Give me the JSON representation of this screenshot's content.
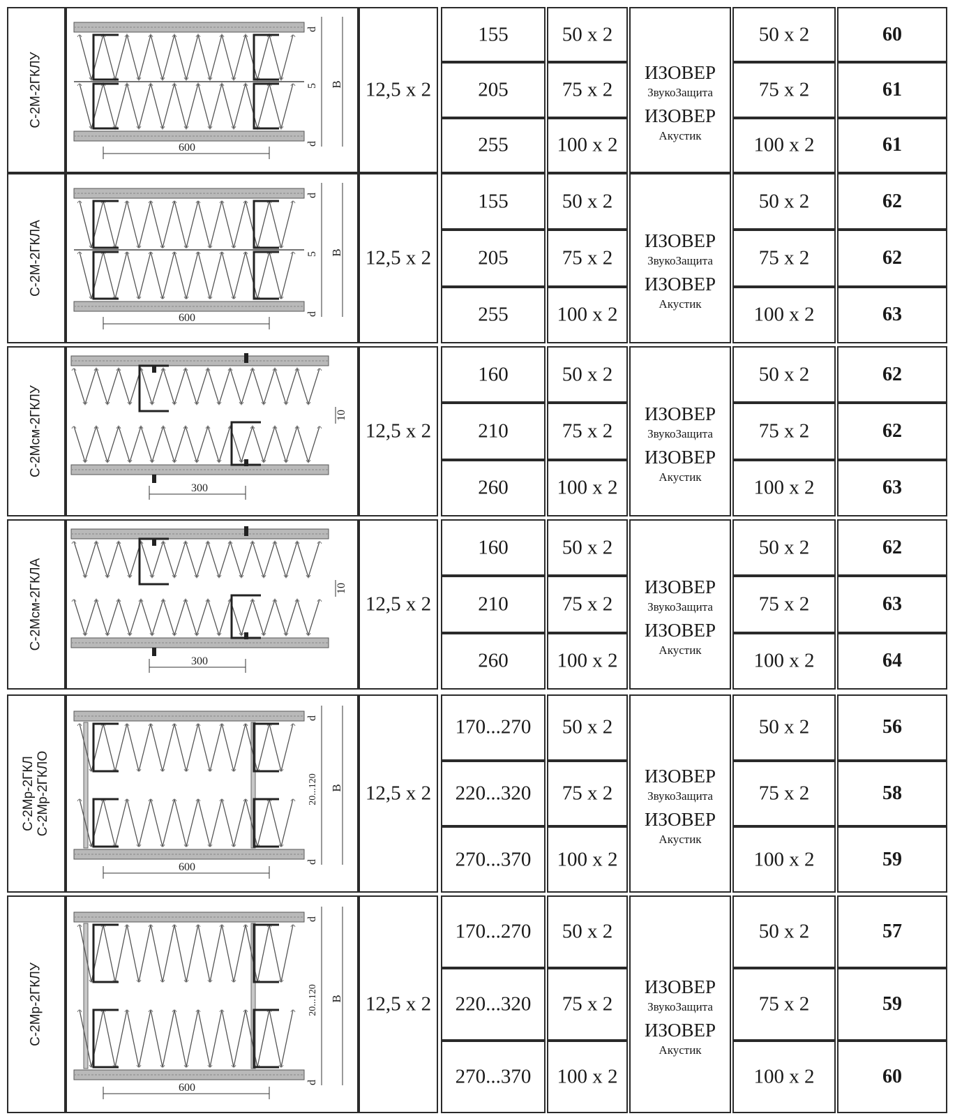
{
  "rows": [
    {
      "name": "С-2М-2ГКЛУ",
      "scheme": "double",
      "spacing_label": "600",
      "dim_labels": {
        "top": "d",
        "mid": "5",
        "height": "B",
        "bottom": "d"
      },
      "cladding": "12,5 x 2",
      "insulation": [
        "ИЗОВЕР",
        "ЗвукоЗащита",
        "ИЗОВЕР",
        "Акустик"
      ],
      "lines": [
        {
          "thickness": "155",
          "profile": "50 x 2",
          "mineral": "50 x 2",
          "rw": "60"
        },
        {
          "thickness": "205",
          "profile": "75 x 2",
          "mineral": "75 x 2",
          "rw": "61"
        },
        {
          "thickness": "255",
          "profile": "100 x 2",
          "mineral": "100 x 2",
          "rw": "61"
        }
      ]
    },
    {
      "name": "С-2М-2ГКЛА",
      "scheme": "double",
      "spacing_label": "600",
      "dim_labels": {
        "top": "d",
        "mid": "5",
        "height": "B",
        "bottom": "d"
      },
      "cladding": "12,5 x 2",
      "insulation": [
        "ИЗОВЕР",
        "ЗвукоЗащита",
        "ИЗОВЕР",
        "Акустик"
      ],
      "lines": [
        {
          "thickness": "155",
          "profile": "50 x 2",
          "mineral": "50 x 2",
          "rw": "62"
        },
        {
          "thickness": "205",
          "profile": "75 x 2",
          "mineral": "75 x 2",
          "rw": "62"
        },
        {
          "thickness": "255",
          "profile": "100 x 2",
          "mineral": "100 x 2",
          "rw": "63"
        }
      ]
    },
    {
      "name": "С-2Мсм-2ГКЛУ",
      "scheme": "staggered",
      "spacing_label": "300",
      "dim_labels": {
        "gap": "10"
      },
      "cladding": "12,5 x 2",
      "insulation": [
        "ИЗОВЕР",
        "ЗвукоЗащита",
        "ИЗОВЕР",
        "Акустик"
      ],
      "lines": [
        {
          "thickness": "160",
          "profile": "50 x 2",
          "mineral": "50 x 2",
          "rw": "62"
        },
        {
          "thickness": "210",
          "profile": "75 x 2",
          "mineral": "75 x 2",
          "rw": "62"
        },
        {
          "thickness": "260",
          "profile": "100 x 2",
          "mineral": "100 x 2",
          "rw": "63"
        }
      ]
    },
    {
      "name": "С-2Мсм-2ГКЛА",
      "scheme": "staggered",
      "spacing_label": "300",
      "dim_labels": {
        "gap": "10"
      },
      "cladding": "12,5 x 2",
      "insulation": [
        "ИЗОВЕР",
        "ЗвукоЗащита",
        "ИЗОВЕР",
        "Акустик"
      ],
      "lines": [
        {
          "thickness": "160",
          "profile": "50 x 2",
          "mineral": "50 x 2",
          "rw": "62"
        },
        {
          "thickness": "210",
          "profile": "75 x 2",
          "mineral": "75 x 2",
          "rw": "63"
        },
        {
          "thickness": "260",
          "profile": "100 x 2",
          "mineral": "100 x 2",
          "rw": "64"
        }
      ]
    },
    {
      "name": "С-2Мр-2ГКЛ\nС-2Мр-2ГКЛО",
      "scheme": "separated",
      "spacing_label": "600",
      "dim_labels": {
        "top": "d",
        "mid": "20...120",
        "height": "B",
        "bottom": "d"
      },
      "cladding": "12,5 x 2",
      "insulation": [
        "ИЗОВЕР",
        "ЗвукоЗащита",
        "ИЗОВЕР",
        "Акустик"
      ],
      "lines": [
        {
          "thickness": "170...270",
          "profile": "50 x 2",
          "mineral": "50 x 2",
          "rw": "56"
        },
        {
          "thickness": "220...320",
          "profile": "75 x 2",
          "mineral": "75 x 2",
          "rw": "58"
        },
        {
          "thickness": "270...370",
          "profile": "100 x 2",
          "mineral": "100 x 2",
          "rw": "59"
        }
      ]
    },
    {
      "name": "С-2Мр-2ГКЛУ",
      "scheme": "separated",
      "spacing_label": "600",
      "dim_labels": {
        "top": "d",
        "mid": "20...120",
        "height": "B",
        "bottom": "d"
      },
      "cladding": "12,5 x 2",
      "insulation": [
        "ИЗОВЕР",
        "ЗвукоЗащита",
        "ИЗОВЕР",
        "Акустик"
      ],
      "lines": [
        {
          "thickness": "170...270",
          "profile": "50 x 2",
          "mineral": "50 x 2",
          "rw": "57"
        },
        {
          "thickness": "220...320",
          "profile": "75 x 2",
          "mineral": "75 x 2",
          "rw": "59"
        },
        {
          "thickness": "270...370",
          "profile": "100 x 2",
          "mineral": "100 x 2",
          "rw": "60"
        }
      ]
    }
  ]
}
